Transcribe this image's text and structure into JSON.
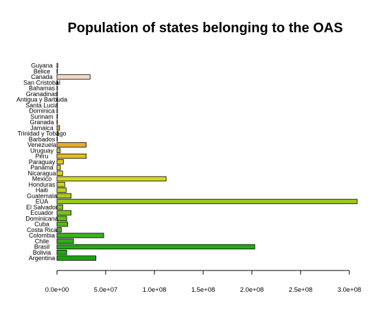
{
  "chart_data": {
    "type": "bar",
    "orientation": "horizontal",
    "title": "Population of states belonging to the OAS",
    "xlabel": "",
    "ylabel": "",
    "xlim": [
      0,
      300000000
    ],
    "x_ticks": [
      0,
      50000000,
      100000000,
      150000000,
      200000000,
      250000000,
      300000000
    ],
    "x_tick_labels": [
      "0.0e+00",
      "5.0e+07",
      "1.0e+08",
      "1.5e+08",
      "2.0e+08",
      "2.5e+08",
      "3.0e+08"
    ],
    "grid": false,
    "categories": [
      "Argentina",
      "Bolivia",
      "Brasil",
      "Chile",
      "Colombia",
      "Costa Rica",
      "Cuba",
      "Dominicana",
      "Ecuador",
      "El Salvador",
      "EUA",
      "Guatemala",
      "Haiti",
      "Honduras",
      "Mexico",
      "Nicaragua",
      "Panama",
      "Paraguay",
      "Peru",
      "Uruguay",
      "Venezuela",
      "Barbados",
      "Trinidad y Tobago",
      "Jamaica",
      "Granada",
      "Surinam",
      "Dominica",
      "Santa Lucia",
      "Antigua y Barbuda",
      "Granadinas",
      "Bahamas",
      "San Cristobal",
      "Canada",
      "Belice",
      "Guyana"
    ],
    "values": [
      40000000,
      10000000,
      203000000,
      17000000,
      48000000,
      4500000,
      11000000,
      10000000,
      14500000,
      6000000,
      308000000,
      14500000,
      9500000,
      8000000,
      112000000,
      5800000,
      3500000,
      6600000,
      30000000,
      3300000,
      30000000,
      280000,
      1300000,
      2700000,
      110000,
      520000,
      70000,
      170000,
      90000,
      110000,
      350000,
      50000,
      34000000,
      320000,
      780000
    ],
    "colors": [
      "#18a30f",
      "#1ea712",
      "#24aa14",
      "#2eae16",
      "#3ab218",
      "#48b519",
      "#56b91b",
      "#66bd1c",
      "#76c11d",
      "#88c51e",
      "#9ac91f",
      "#aacd20",
      "#bcd021",
      "#c8d422",
      "#d2d822",
      "#d8d423",
      "#dccc24",
      "#dec425",
      "#e0bc28",
      "#e1b42c",
      "#e2ae30",
      "#e2aa38",
      "#e2a840",
      "#e2a84a",
      "#e4aa56",
      "#e6ae62",
      "#e8b26e",
      "#eab87a",
      "#ecbe86",
      "#eec492",
      "#f0cc9e",
      "#f2d2aa",
      "#f2d8c4",
      "#f2e2d4",
      "#f2f2f2"
    ]
  }
}
